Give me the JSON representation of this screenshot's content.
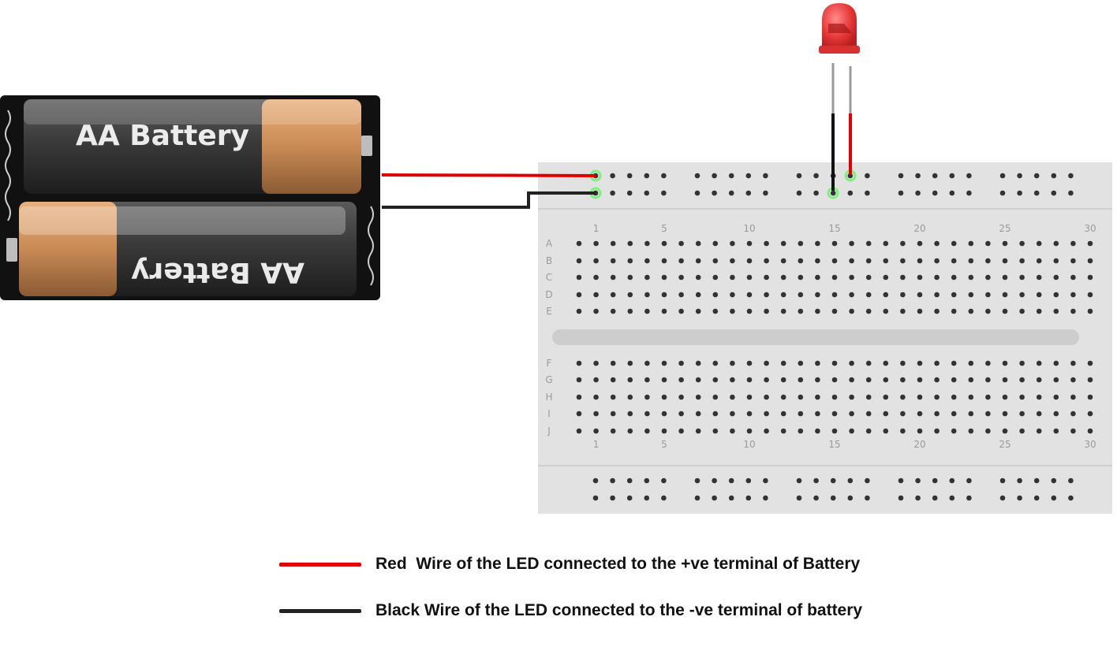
{
  "battery": {
    "top_label": "AA Battery",
    "bottom_label": "AA Battery"
  },
  "breadboard": {
    "rows_top": [
      "A",
      "B",
      "C",
      "D",
      "E"
    ],
    "rows_bottom": [
      "F",
      "G",
      "H",
      "I",
      "J"
    ],
    "column_markers": [
      "1",
      "5",
      "10",
      "15",
      "20",
      "25",
      "30"
    ]
  },
  "legend": {
    "red": {
      "label": "Red  Wire of the LED connected to the +ve terminal of Battery"
    },
    "black": {
      "label": "Black Wire of the LED connected to the -ve terminal of battery"
    }
  },
  "colors": {
    "red_wire": "#e00000",
    "black_wire": "#222222",
    "breadboard": "#e2e2e2",
    "led": "#e83a3a",
    "highlight": "#7cf07c"
  }
}
